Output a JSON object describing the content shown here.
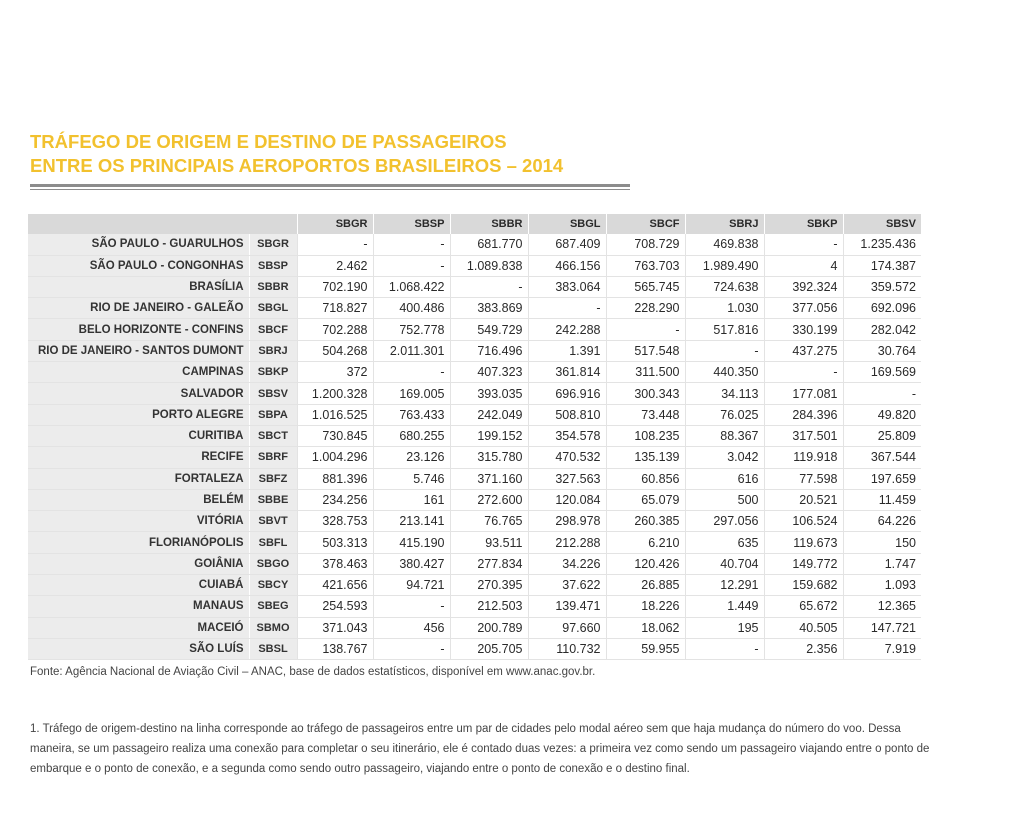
{
  "title": {
    "line1": "TRÁFEGO DE ORIGEM E DESTINO DE PASSAGEIROS",
    "line2": "ENTRE OS PRINCIPAIS AEROPORTOS BRASILEIROS – 2014"
  },
  "table": {
    "columns": [
      "SBGR",
      "SBSP",
      "SBBR",
      "SBGL",
      "SBCF",
      "SBRJ",
      "SBKP",
      "SBSV"
    ],
    "rows": [
      {
        "city": "SÃO PAULO - GUARULHOS",
        "code": "SBGR",
        "values": [
          "-",
          "-",
          "681.770",
          "687.409",
          "708.729",
          "469.838",
          "-",
          "1.235.436"
        ]
      },
      {
        "city": "SÃO PAULO - CONGONHAS",
        "code": "SBSP",
        "values": [
          "2.462",
          "-",
          "1.089.838",
          "466.156",
          "763.703",
          "1.989.490",
          "4",
          "174.387"
        ]
      },
      {
        "city": "BRASÍLIA",
        "code": "SBBR",
        "values": [
          "702.190",
          "1.068.422",
          "-",
          "383.064",
          "565.745",
          "724.638",
          "392.324",
          "359.572"
        ]
      },
      {
        "city": "RIO DE JANEIRO - GALEÃO",
        "code": "SBGL",
        "values": [
          "718.827",
          "400.486",
          "383.869",
          "-",
          "228.290",
          "1.030",
          "377.056",
          "692.096"
        ]
      },
      {
        "city": "BELO HORIZONTE - CONFINS",
        "code": "SBCF",
        "values": [
          "702.288",
          "752.778",
          "549.729",
          "242.288",
          "-",
          "517.816",
          "330.199",
          "282.042"
        ]
      },
      {
        "city": "RIO DE JANEIRO - SANTOS DUMONT",
        "code": "SBRJ",
        "values": [
          "504.268",
          "2.011.301",
          "716.496",
          "1.391",
          "517.548",
          "-",
          "437.275",
          "30.764"
        ]
      },
      {
        "city": "CAMPINAS",
        "code": "SBKP",
        "values": [
          "372",
          "-",
          "407.323",
          "361.814",
          "311.500",
          "440.350",
          "-",
          "169.569"
        ]
      },
      {
        "city": "SALVADOR",
        "code": "SBSV",
        "values": [
          "1.200.328",
          "169.005",
          "393.035",
          "696.916",
          "300.343",
          "34.113",
          "177.081",
          "-"
        ]
      },
      {
        "city": "PORTO ALEGRE",
        "code": "SBPA",
        "values": [
          "1.016.525",
          "763.433",
          "242.049",
          "508.810",
          "73.448",
          "76.025",
          "284.396",
          "49.820"
        ]
      },
      {
        "city": "CURITIBA",
        "code": "SBCT",
        "values": [
          "730.845",
          "680.255",
          "199.152",
          "354.578",
          "108.235",
          "88.367",
          "317.501",
          "25.809"
        ]
      },
      {
        "city": "RECIFE",
        "code": "SBRF",
        "values": [
          "1.004.296",
          "23.126",
          "315.780",
          "470.532",
          "135.139",
          "3.042",
          "119.918",
          "367.544"
        ]
      },
      {
        "city": "FORTALEZA",
        "code": "SBFZ",
        "values": [
          "881.396",
          "5.746",
          "371.160",
          "327.563",
          "60.856",
          "616",
          "77.598",
          "197.659"
        ]
      },
      {
        "city": "BELÉM",
        "code": "SBBE",
        "values": [
          "234.256",
          "161",
          "272.600",
          "120.084",
          "65.079",
          "500",
          "20.521",
          "11.459"
        ]
      },
      {
        "city": "VITÓRIA",
        "code": "SBVT",
        "values": [
          "328.753",
          "213.141",
          "76.765",
          "298.978",
          "260.385",
          "297.056",
          "106.524",
          "64.226"
        ]
      },
      {
        "city": "FLORIANÓPOLIS",
        "code": "SBFL",
        "values": [
          "503.313",
          "415.190",
          "93.511",
          "212.288",
          "6.210",
          "635",
          "119.673",
          "150"
        ]
      },
      {
        "city": "GOIÂNIA",
        "code": "SBGO",
        "values": [
          "378.463",
          "380.427",
          "277.834",
          "34.226",
          "120.426",
          "40.704",
          "149.772",
          "1.747"
        ]
      },
      {
        "city": "CUIABÁ",
        "code": "SBCY",
        "values": [
          "421.656",
          "94.721",
          "270.395",
          "37.622",
          "26.885",
          "12.291",
          "159.682",
          "1.093"
        ]
      },
      {
        "city": "MANAUS",
        "code": "SBEG",
        "values": [
          "254.593",
          "-",
          "212.503",
          "139.471",
          "18.226",
          "1.449",
          "65.672",
          "12.365"
        ]
      },
      {
        "city": "MACEIÓ",
        "code": "SBMO",
        "values": [
          "371.043",
          "456",
          "200.789",
          "97.660",
          "18.062",
          "195",
          "40.505",
          "147.721"
        ]
      },
      {
        "city": "SÃO LUÍS",
        "code": "SBSL",
        "values": [
          "138.767",
          "-",
          "205.705",
          "110.732",
          "59.955",
          "-",
          "2.356",
          "7.919"
        ]
      }
    ]
  },
  "source": "Fonte: Agência Nacional de Aviação Civil – ANAC, base de dados estatísticos, disponível em www.anac.gov.br.",
  "note": "1. Tráfego de origem-destino na linha corresponde ao tráfego de passageiros entre um par de cidades pelo modal aéreo sem que haja mudança do número do voo. Dessa maneira, se um passageiro realiza uma conexão para completar o seu itinerário, ele é contado duas vezes: a primeira vez como sendo um passageiro viajando entre o ponto de embarque e o ponto de conexão, e a segunda como sendo outro passageiro, viajando entre o ponto de conexão e o destino final.",
  "colors": {
    "title": "#f2c12e",
    "header_bg": "#d9d9d9",
    "label_bg": "#ececec",
    "rule": "#8c8c8c"
  }
}
